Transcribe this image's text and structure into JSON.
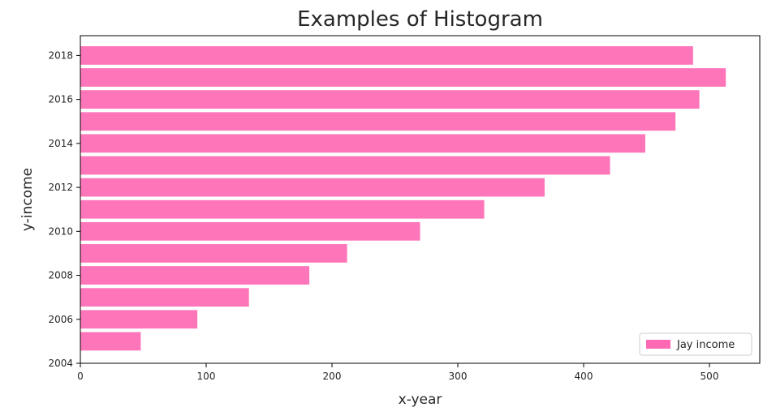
{
  "chart_data": {
    "type": "bar",
    "orientation": "horizontal",
    "title": "Examples of Histogram",
    "xlabel": "x-year",
    "ylabel": "y-income",
    "categories": [
      2005,
      2006,
      2007,
      2008,
      2009,
      2010,
      2011,
      2012,
      2013,
      2014,
      2015,
      2016,
      2017,
      2018
    ],
    "series": [
      {
        "name": "Jay income",
        "color": "#ff69b4",
        "values": [
          48,
          93,
          134,
          182,
          212,
          270,
          321,
          369,
          421,
          449,
          473,
          492,
          513,
          487
        ]
      }
    ],
    "xlim": [
      0,
      540
    ],
    "ylim": [
      2004,
      2018.9
    ],
    "xticks": [
      0,
      100,
      200,
      300,
      400,
      500
    ],
    "yticks": [
      2004,
      2006,
      2008,
      2010,
      2012,
      2014,
      2016,
      2018
    ],
    "grid": false,
    "legend": {
      "placement": "lower-right",
      "entries": [
        "Jay income"
      ]
    }
  }
}
